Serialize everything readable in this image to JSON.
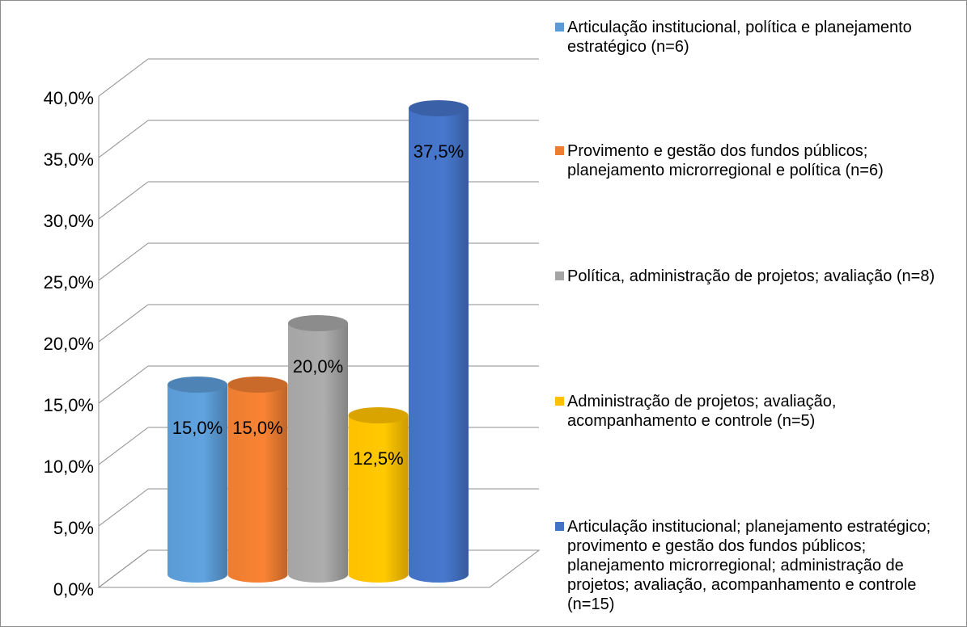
{
  "chart_data": {
    "type": "bar",
    "series": [
      {
        "name": "Articulação institucional, política e planejamento estratégico (n=6)",
        "color": "#5b9bd5",
        "values": [
          15
        ],
        "value_labels": [
          "15,0%"
        ]
      },
      {
        "name": "Provimento e gestão dos fundos públicos; planejamento microrregional e política (n=6)",
        "color": "#ed7d31",
        "values": [
          15
        ],
        "value_labels": [
          "15,0%"
        ]
      },
      {
        "name": "Política, administração de projetos; avaliação (n=8)",
        "color": "#a5a5a5",
        "values": [
          20
        ],
        "value_labels": [
          "20,0%"
        ]
      },
      {
        "name": "Administração de projetos; avaliação, acompanhamento e controle (n=5)",
        "color": "#ffc000",
        "values": [
          12.5
        ],
        "value_labels": [
          "12,5%"
        ]
      },
      {
        "name": "Articulação institucional; planejamento estratégico; provimento e gestão dos fundos públicos; planejamento microrregional; administração de projetos; avaliação, acompanhamento e controle (n=15)",
        "color": "#4472c4",
        "values": [
          37.5
        ],
        "value_labels": [
          "37,5%"
        ]
      }
    ],
    "ylim": [
      0,
      40
    ],
    "yticks": [
      {
        "value": 0,
        "label": "0,0%"
      },
      {
        "value": 5,
        "label": "5,0%"
      },
      {
        "value": 10,
        "label": "10,0%"
      },
      {
        "value": 15,
        "label": "15,0%"
      },
      {
        "value": 20,
        "label": "20,0%"
      },
      {
        "value": 25,
        "label": "25,0%"
      },
      {
        "value": 30,
        "label": "30,0%"
      },
      {
        "value": 35,
        "label": "35,0%"
      },
      {
        "value": 40,
        "label": "40,0%"
      }
    ],
    "grid": true,
    "legend": "right"
  }
}
